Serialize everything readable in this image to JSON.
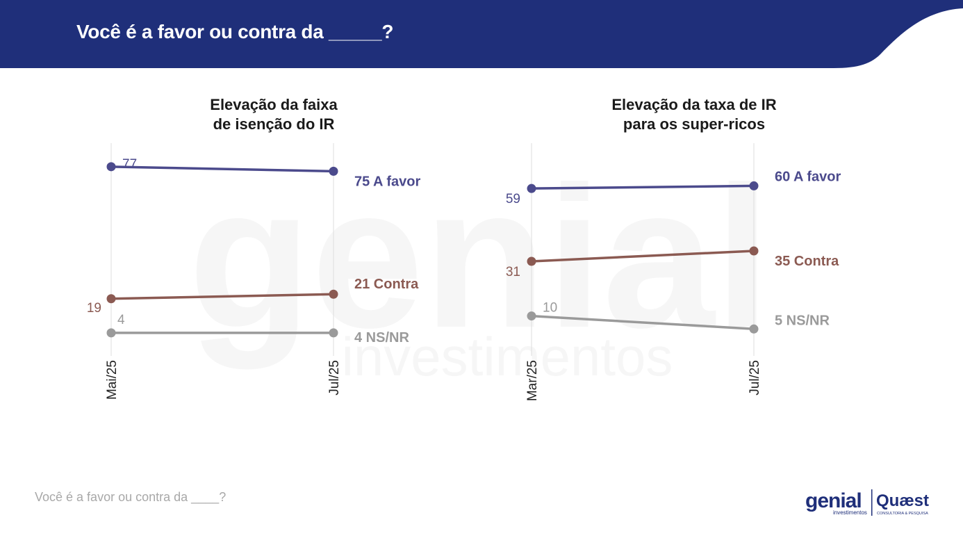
{
  "header": {
    "title": "Você é a favor ou contra da _____?"
  },
  "watermark": {
    "line1": "genial",
    "line2": "investimentos"
  },
  "footer": {
    "text": "Você é a favor ou contra da ____?"
  },
  "logos": {
    "genial": "genial",
    "genial_sub": "investimentos",
    "quaest": "Quæst",
    "quaest_sub": "CONSULTORIA & PESQUISA"
  },
  "colors": {
    "header_bg": "#1f2f7a",
    "favor": "#4b4a8c",
    "contra": "#8b5a52",
    "nsnr": "#9a9a9a"
  },
  "chart_data": [
    {
      "type": "line",
      "title": "Elevação da faixa de isenção do IR",
      "title_lines": [
        "Elevação da faixa",
        "de isenção do IR"
      ],
      "categories": [
        "Mai/25",
        "Jul/25"
      ],
      "ylim": [
        0,
        80
      ],
      "grid": "vertical",
      "series": [
        {
          "name": "A favor",
          "values": [
            77,
            75
          ],
          "end_label": "75 A favor",
          "start_label": "77"
        },
        {
          "name": "Contra",
          "values": [
            19,
            21
          ],
          "end_label": "21 Contra",
          "start_label": "19"
        },
        {
          "name": "NS/NR",
          "values": [
            4,
            4
          ],
          "end_label": "4 NS/NR",
          "start_label": "4"
        }
      ]
    },
    {
      "type": "line",
      "title": "Elevação da taxa de IR para os super-ricos",
      "title_lines": [
        "Elevação da taxa de IR",
        "para os super-ricos"
      ],
      "categories": [
        "Mar/25",
        "Jul/25"
      ],
      "ylim": [
        0,
        70
      ],
      "grid": "vertical",
      "series": [
        {
          "name": "A favor",
          "values": [
            59,
            60
          ],
          "end_label": "60 A favor",
          "start_label": "59"
        },
        {
          "name": "Contra",
          "values": [
            31,
            35
          ],
          "end_label": "35 Contra",
          "start_label": "31"
        },
        {
          "name": "NS/NR",
          "values": [
            10,
            5
          ],
          "end_label": "5 NS/NR",
          "start_label": "10"
        }
      ]
    }
  ]
}
